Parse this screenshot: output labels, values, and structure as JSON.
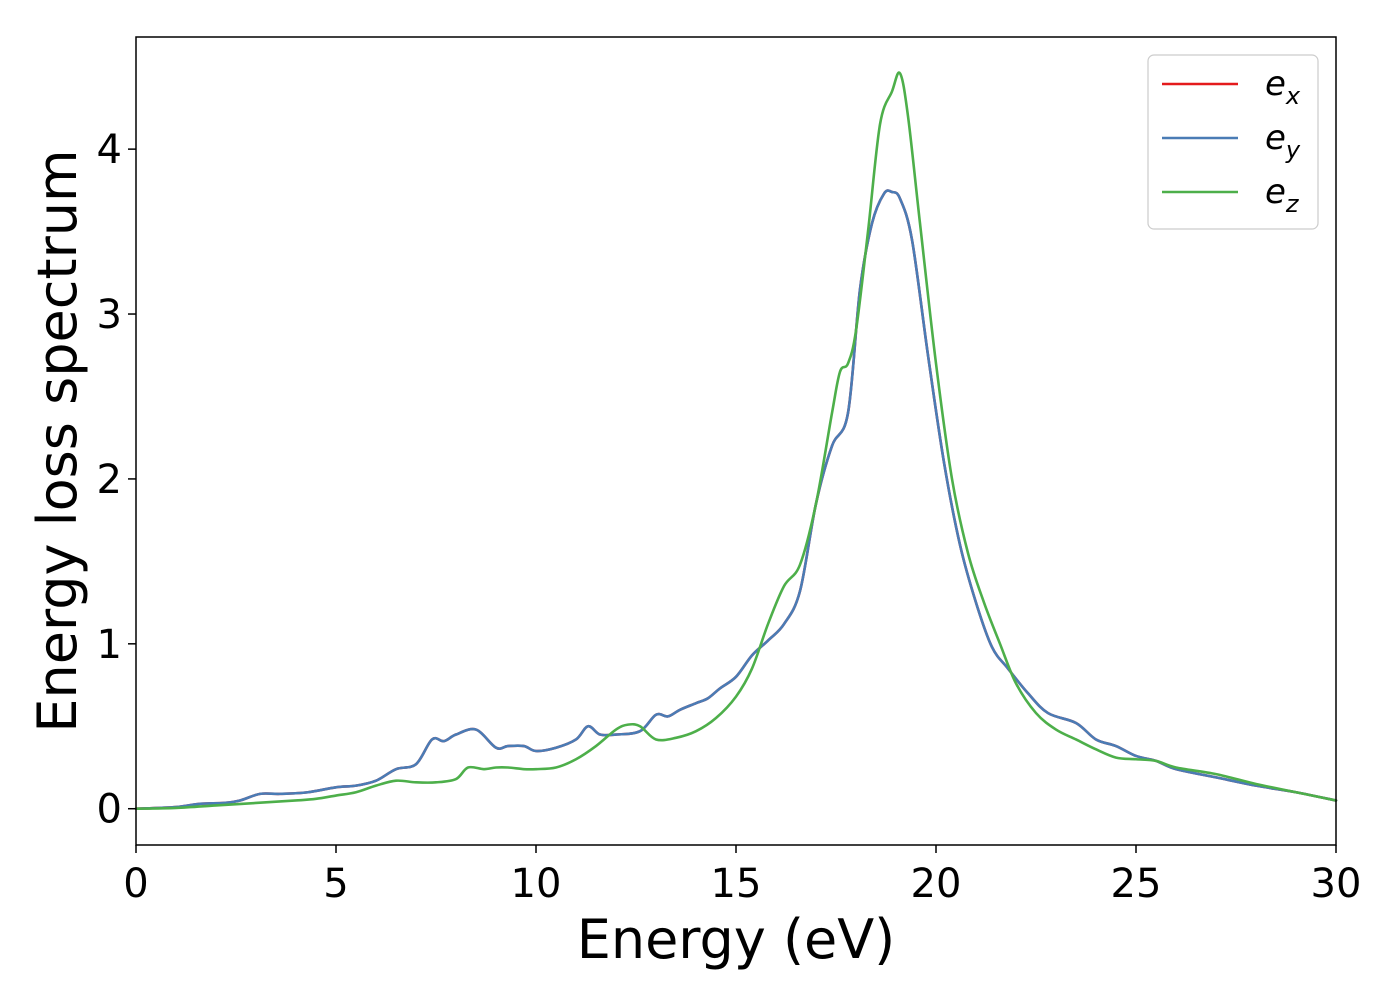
{
  "chart_data": {
    "type": "line",
    "title": "",
    "xlabel": "Energy (eV)",
    "ylabel": "Energy loss spectrum",
    "xlim": [
      0,
      30
    ],
    "ylim": [
      -0.22,
      4.68
    ],
    "xticks": [
      0,
      5,
      10,
      15,
      20,
      25,
      30
    ],
    "yticks": [
      0,
      1,
      2,
      3,
      4
    ],
    "grid": false,
    "legend_position": "top-right",
    "series": [
      {
        "name": "e_x",
        "label_base": "e",
        "label_sub": "x",
        "color": "#e41a1c",
        "x": [
          0,
          1,
          1.6,
          2.2,
          2.6,
          3.1,
          3.6,
          4.3,
          5,
          5.5,
          6,
          6.5,
          7,
          7.4,
          7.7,
          8,
          8.5,
          9,
          9.3,
          9.7,
          10,
          10.5,
          11,
          11.3,
          11.6,
          12,
          12.6,
          13,
          13.3,
          13.6,
          14,
          14.3,
          14.6,
          15,
          15.4,
          15.8,
          16.2,
          16.6,
          17,
          17.4,
          17.8,
          18.1,
          18.4,
          18.7,
          18.9,
          19.1,
          19.4,
          19.8,
          20.2,
          20.6,
          21,
          21.4,
          21.8,
          22.3,
          22.8,
          23.5,
          24,
          24.5,
          25,
          25.5,
          26,
          27,
          28,
          29,
          30
        ],
        "y": [
          0,
          0.01,
          0.03,
          0.035,
          0.05,
          0.09,
          0.09,
          0.1,
          0.13,
          0.14,
          0.17,
          0.24,
          0.27,
          0.42,
          0.41,
          0.45,
          0.48,
          0.37,
          0.38,
          0.38,
          0.35,
          0.37,
          0.42,
          0.5,
          0.45,
          0.45,
          0.47,
          0.57,
          0.56,
          0.6,
          0.64,
          0.67,
          0.73,
          0.8,
          0.93,
          1.02,
          1.12,
          1.32,
          1.85,
          2.2,
          2.4,
          3.15,
          3.55,
          3.73,
          3.74,
          3.7,
          3.45,
          2.75,
          2.1,
          1.6,
          1.25,
          0.98,
          0.85,
          0.7,
          0.58,
          0.52,
          0.42,
          0.38,
          0.32,
          0.29,
          0.24,
          0.19,
          0.14,
          0.1,
          0.05
        ]
      },
      {
        "name": "e_y",
        "label_base": "e",
        "label_sub": "y",
        "color": "#4a7cb5",
        "x": [
          0,
          1,
          1.6,
          2.2,
          2.6,
          3.1,
          3.6,
          4.3,
          5,
          5.5,
          6,
          6.5,
          7,
          7.4,
          7.7,
          8,
          8.5,
          9,
          9.3,
          9.7,
          10,
          10.5,
          11,
          11.3,
          11.6,
          12,
          12.6,
          13,
          13.3,
          13.6,
          14,
          14.3,
          14.6,
          15,
          15.4,
          15.8,
          16.2,
          16.6,
          17,
          17.4,
          17.8,
          18.1,
          18.4,
          18.7,
          18.9,
          19.1,
          19.4,
          19.8,
          20.2,
          20.6,
          21,
          21.4,
          21.8,
          22.3,
          22.8,
          23.5,
          24,
          24.5,
          25,
          25.5,
          26,
          27,
          28,
          29,
          30
        ],
        "y": [
          0,
          0.01,
          0.03,
          0.035,
          0.05,
          0.09,
          0.09,
          0.1,
          0.13,
          0.14,
          0.17,
          0.24,
          0.27,
          0.42,
          0.41,
          0.45,
          0.48,
          0.37,
          0.38,
          0.38,
          0.35,
          0.37,
          0.42,
          0.5,
          0.45,
          0.45,
          0.47,
          0.57,
          0.56,
          0.6,
          0.64,
          0.67,
          0.73,
          0.8,
          0.93,
          1.02,
          1.12,
          1.32,
          1.85,
          2.2,
          2.4,
          3.15,
          3.55,
          3.73,
          3.74,
          3.7,
          3.45,
          2.75,
          2.1,
          1.6,
          1.25,
          0.98,
          0.85,
          0.7,
          0.58,
          0.52,
          0.42,
          0.38,
          0.32,
          0.29,
          0.24,
          0.19,
          0.14,
          0.1,
          0.05
        ]
      },
      {
        "name": "e_z",
        "label_base": "e",
        "label_sub": "z",
        "color": "#4daf4a",
        "x": [
          0,
          1,
          2,
          3,
          4,
          4.5,
          5,
          5.5,
          6,
          6.5,
          7,
          7.5,
          8,
          8.3,
          8.7,
          9,
          9.3,
          9.7,
          10,
          10.5,
          11,
          11.5,
          12,
          12.3,
          12.6,
          13,
          13.5,
          14,
          14.5,
          15,
          15.4,
          15.8,
          16.2,
          16.6,
          17,
          17.4,
          17.6,
          17.8,
          18,
          18.3,
          18.6,
          18.9,
          19.1,
          19.3,
          19.6,
          20,
          20.4,
          20.8,
          21.2,
          21.6,
          22,
          22.5,
          23,
          23.5,
          24,
          24.5,
          25,
          25.5,
          26,
          27,
          28,
          29,
          30
        ],
        "y": [
          0,
          0.005,
          0.02,
          0.035,
          0.05,
          0.06,
          0.08,
          0.1,
          0.14,
          0.17,
          0.16,
          0.16,
          0.18,
          0.25,
          0.24,
          0.25,
          0.25,
          0.24,
          0.24,
          0.25,
          0.3,
          0.38,
          0.48,
          0.51,
          0.5,
          0.42,
          0.43,
          0.47,
          0.55,
          0.68,
          0.85,
          1.12,
          1.35,
          1.48,
          1.85,
          2.4,
          2.65,
          2.7,
          2.9,
          3.5,
          4.15,
          4.35,
          4.46,
          4.2,
          3.55,
          2.7,
          2.0,
          1.55,
          1.25,
          1.0,
          0.76,
          0.58,
          0.48,
          0.42,
          0.36,
          0.31,
          0.3,
          0.29,
          0.25,
          0.21,
          0.15,
          0.1,
          0.05
        ]
      }
    ]
  }
}
